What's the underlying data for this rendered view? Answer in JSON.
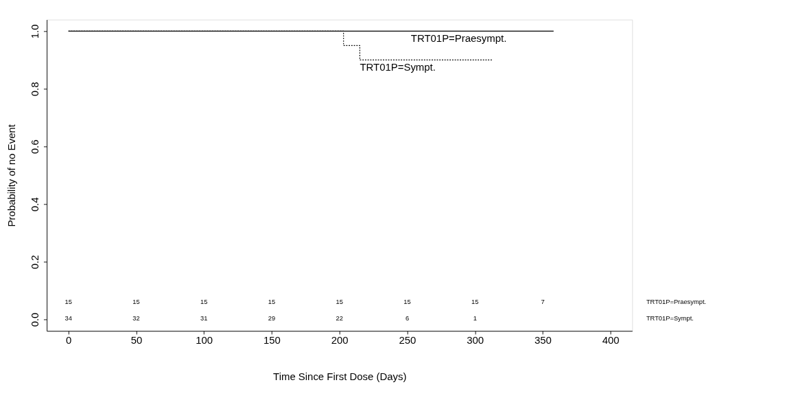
{
  "chart_data": {
    "type": "step",
    "xlabel": "Time Since First Dose (Days)",
    "ylabel": "Probability of no Event",
    "xlim": [
      -16,
      416
    ],
    "xticks": [
      0,
      50,
      100,
      150,
      200,
      250,
      300,
      350,
      400
    ],
    "ylim": [
      -0.04,
      1.04
    ],
    "yticks": [
      {
        "value": 0,
        "label": "0.0"
      },
      {
        "value": 0.2,
        "label": "0.2"
      },
      {
        "value": 0.4,
        "label": "0.4"
      },
      {
        "value": 0.6,
        "label": "0.6"
      },
      {
        "value": 0.8,
        "label": "0.8"
      },
      {
        "value": 1,
        "label": "1.0"
      }
    ],
    "grid": false,
    "legend": false,
    "series": [
      {
        "name": "TRT01P=Praesympt.",
        "color": "#000000",
        "line_style": "solid",
        "x": [
          0,
          358
        ],
        "values": [
          1,
          1
        ]
      },
      {
        "name": "TRT01P=Sympt.",
        "color": "#000000",
        "line_style": "dotted",
        "x": [
          0,
          203,
          215,
          313
        ],
        "values": [
          1,
          0.95,
          0.9,
          0.9
        ]
      }
    ],
    "annotations": [
      "15",
      "15",
      "15",
      "15",
      "15",
      "15",
      "15",
      "7",
      "TRT01P=Praesympt.",
      "34",
      "32",
      "31",
      "29",
      "22",
      "6",
      "1",
      "TRT01P=Sympt."
    ]
  }
}
